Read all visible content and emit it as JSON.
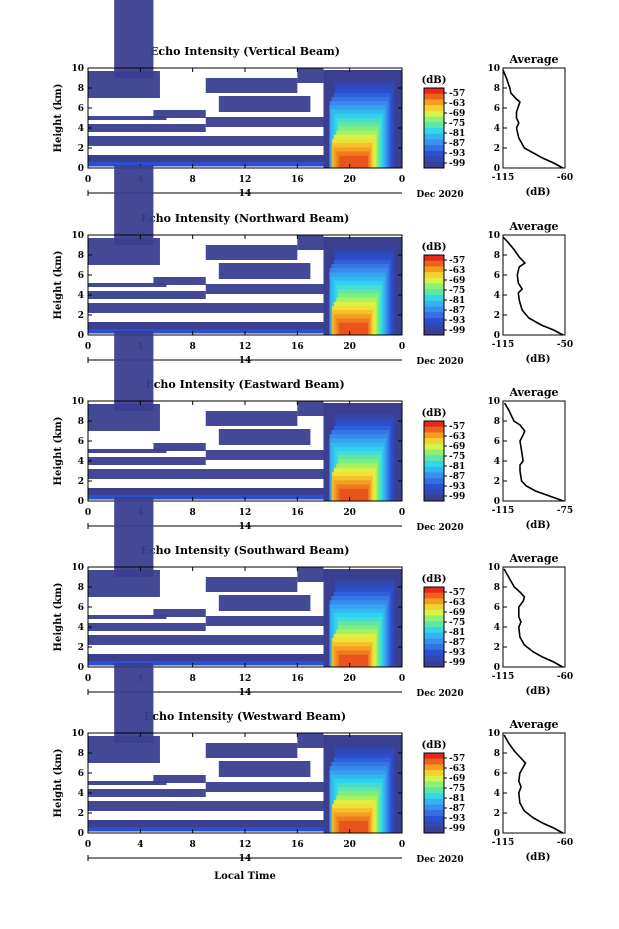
{
  "figure": {
    "xlabel": "Local Time",
    "date_suffix": "Dec 2020",
    "colorbar_unit": "(dB)",
    "profile_title": "Average",
    "profile_xlabel": "(dB)"
  },
  "chart_data": [
    {
      "type": "heatmap",
      "title": "Echo Intensity (Vertical Beam)",
      "ylabel": "Height (km)",
      "x_ticks": [
        "0",
        "4",
        "8",
        "12",
        "16",
        "20",
        "0"
      ],
      "day_label": "14",
      "y_ticks": [
        "0",
        "2",
        "4",
        "6",
        "8",
        "10"
      ],
      "xlim": [
        0,
        24
      ],
      "ylim": [
        0,
        10
      ],
      "colorbar_ticks": [
        "-57",
        "-63",
        "-69",
        "-75",
        "-81",
        "-87",
        "-93",
        "-99"
      ],
      "colorbar_range": [
        -99,
        -57
      ],
      "profile": {
        "x_ticks": [
          "-115",
          "-60"
        ],
        "xlim": [
          -115,
          -60
        ],
        "y_ticks": [
          "0",
          "2",
          "4",
          "6",
          "8",
          "10"
        ],
        "points": [
          [
            -62,
            0
          ],
          [
            -70,
            0.5
          ],
          [
            -80,
            1
          ],
          [
            -88,
            1.5
          ],
          [
            -96,
            2
          ],
          [
            -101,
            3
          ],
          [
            -103,
            4
          ],
          [
            -101,
            4.5
          ],
          [
            -103,
            5
          ],
          [
            -103,
            5.6
          ],
          [
            -100,
            6.6
          ],
          [
            -104,
            7
          ],
          [
            -108,
            7.5
          ],
          [
            -109,
            8
          ],
          [
            -112,
            9
          ],
          [
            -115,
            9.8
          ]
        ]
      }
    },
    {
      "type": "heatmap",
      "title": "Echo Intensity (Northward Beam)",
      "ylabel": "Height (km)",
      "x_ticks": [
        "0",
        "4",
        "8",
        "12",
        "16",
        "20",
        "0"
      ],
      "day_label": "14",
      "y_ticks": [
        "0",
        "2",
        "4",
        "6",
        "8",
        "10"
      ],
      "xlim": [
        0,
        24
      ],
      "ylim": [
        0,
        10
      ],
      "colorbar_ticks": [
        "-57",
        "-63",
        "-69",
        "-75",
        "-81",
        "-87",
        "-93",
        "-99"
      ],
      "colorbar_range": [
        -99,
        -57
      ],
      "profile": {
        "x_ticks": [
          "-115",
          "-50"
        ],
        "xlim": [
          -115,
          -50
        ],
        "y_ticks": [
          "0",
          "2",
          "4",
          "6",
          "8",
          "10"
        ],
        "points": [
          [
            -52,
            0
          ],
          [
            -62,
            0.5
          ],
          [
            -75,
            1
          ],
          [
            -88,
            1.7
          ],
          [
            -95,
            2.5
          ],
          [
            -98,
            3.5
          ],
          [
            -99,
            4.2
          ],
          [
            -95,
            4.6
          ],
          [
            -99,
            5.2
          ],
          [
            -100,
            6
          ],
          [
            -98,
            6.8
          ],
          [
            -92,
            7.2
          ],
          [
            -98,
            7.8
          ],
          [
            -103,
            8.5
          ],
          [
            -110,
            9.3
          ],
          [
            -115,
            9.8
          ]
        ]
      }
    },
    {
      "type": "heatmap",
      "title": "Echo Intensity (Eastward Beam)",
      "ylabel": "Height (km)",
      "x_ticks": [
        "0",
        "4",
        "8",
        "12",
        "16",
        "20",
        "0"
      ],
      "day_label": "14",
      "y_ticks": [
        "0",
        "2",
        "4",
        "6",
        "8",
        "10"
      ],
      "xlim": [
        0,
        24
      ],
      "ylim": [
        0,
        10
      ],
      "colorbar_ticks": [
        "-57",
        "-63",
        "-69",
        "-75",
        "-81",
        "-87",
        "-93",
        "-99"
      ],
      "colorbar_range": [
        -99,
        -57
      ],
      "profile": {
        "x_ticks": [
          "-115",
          "-75"
        ],
        "xlim": [
          -115,
          -75
        ],
        "y_ticks": [
          "0",
          "2",
          "4",
          "6",
          "8",
          "10"
        ],
        "points": [
          [
            -76,
            0
          ],
          [
            -85,
            0.5
          ],
          [
            -94,
            1
          ],
          [
            -100,
            1.5
          ],
          [
            -103,
            2
          ],
          [
            -104,
            3
          ],
          [
            -104,
            3.6
          ],
          [
            -102,
            4
          ],
          [
            -103,
            5
          ],
          [
            -104,
            6
          ],
          [
            -102,
            6.6
          ],
          [
            -101,
            7
          ],
          [
            -104,
            7.6
          ],
          [
            -108,
            8
          ],
          [
            -111,
            9
          ],
          [
            -114,
            9.8
          ]
        ]
      }
    },
    {
      "type": "heatmap",
      "title": "Echo Intensity (Southward Beam)",
      "ylabel": "Height (km)",
      "x_ticks": [
        "0",
        "4",
        "8",
        "12",
        "16",
        "20",
        "0"
      ],
      "day_label": "14",
      "y_ticks": [
        "0",
        "2",
        "4",
        "6",
        "8",
        "10"
      ],
      "xlim": [
        0,
        24
      ],
      "ylim": [
        0,
        10
      ],
      "colorbar_ticks": [
        "-57",
        "-63",
        "-69",
        "-75",
        "-81",
        "-87",
        "-93",
        "-99"
      ],
      "colorbar_range": [
        -99,
        -57
      ],
      "profile": {
        "x_ticks": [
          "-115",
          "-60"
        ],
        "xlim": [
          -115,
          -60
        ],
        "y_ticks": [
          "0",
          "2",
          "4",
          "6",
          "8",
          "10"
        ],
        "points": [
          [
            -62,
            0
          ],
          [
            -70,
            0.5
          ],
          [
            -80,
            1
          ],
          [
            -88,
            1.5
          ],
          [
            -96,
            2.2
          ],
          [
            -100,
            3
          ],
          [
            -101,
            4
          ],
          [
            -99,
            4.5
          ],
          [
            -101,
            5
          ],
          [
            -101,
            6
          ],
          [
            -97,
            6.6
          ],
          [
            -96,
            7
          ],
          [
            -100,
            7.5
          ],
          [
            -105,
            8
          ],
          [
            -110,
            9
          ],
          [
            -114,
            9.8
          ]
        ]
      }
    },
    {
      "type": "heatmap",
      "title": "Echo Intensity (Westward Beam)",
      "ylabel": "Height (km)",
      "x_ticks": [
        "0",
        "4",
        "8",
        "12",
        "16",
        "20",
        "0"
      ],
      "day_label": "14",
      "y_ticks": [
        "0",
        "2",
        "4",
        "6",
        "8",
        "10"
      ],
      "xlim": [
        0,
        24
      ],
      "ylim": [
        0,
        10
      ],
      "colorbar_ticks": [
        "-57",
        "-63",
        "-69",
        "-75",
        "-81",
        "-87",
        "-93",
        "-99"
      ],
      "colorbar_range": [
        -99,
        -57
      ],
      "profile": {
        "x_ticks": [
          "-115",
          "-60"
        ],
        "xlim": [
          -115,
          -60
        ],
        "y_ticks": [
          "0",
          "2",
          "4",
          "6",
          "8",
          "10"
        ],
        "points": [
          [
            -62,
            0
          ],
          [
            -70,
            0.5
          ],
          [
            -80,
            1
          ],
          [
            -88,
            1.5
          ],
          [
            -96,
            2.2
          ],
          [
            -100,
            3
          ],
          [
            -101,
            4
          ],
          [
            -99,
            4.6
          ],
          [
            -101,
            5.2
          ],
          [
            -100,
            6
          ],
          [
            -97,
            6.6
          ],
          [
            -95,
            7
          ],
          [
            -100,
            7.6
          ],
          [
            -105,
            8.2
          ],
          [
            -110,
            9
          ],
          [
            -114,
            9.8
          ]
        ]
      }
    }
  ]
}
